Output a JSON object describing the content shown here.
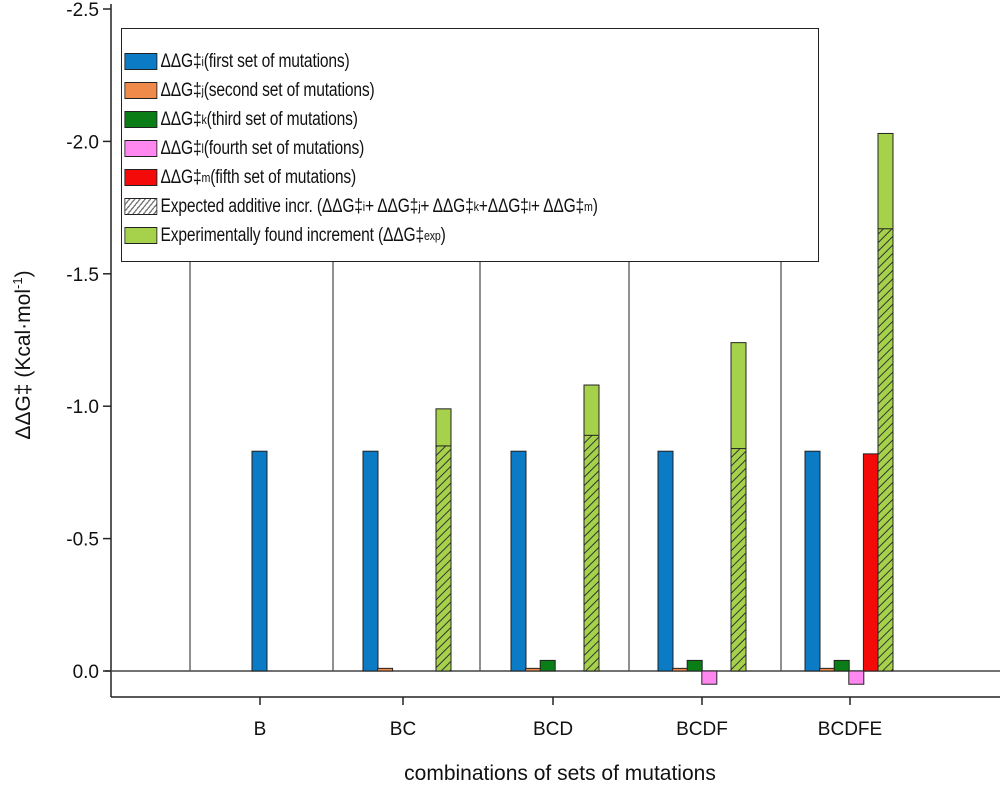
{
  "chart_data": {
    "type": "bar",
    "title": "",
    "xlabel": "combinations of sets of mutations",
    "ylabel": "ΔΔG‡ (Kcal·mol-1)",
    "ylabel_parts": {
      "main": "ΔΔG‡ (Kcal·mol",
      "sup": "-1",
      "end": ")"
    },
    "ylim": [
      0.1,
      -2.5
    ],
    "y_inverted": true,
    "yticks": [
      "-2.5",
      "-2.0",
      "-1.5",
      "-1.0",
      "-0.5",
      "0.0"
    ],
    "ytick_values": [
      -2.5,
      -2.0,
      -1.5,
      -1.0,
      -0.5,
      0.0
    ],
    "categories": [
      "B",
      "BC",
      "BCD",
      "BCDF",
      "BCDFE"
    ],
    "legend_position": "top-left",
    "grid": false,
    "series": [
      {
        "name": "ΔΔG‡i (first set of mutations)",
        "color": "#0a7bc4",
        "values": [
          -0.83,
          -0.83,
          -0.83,
          -0.83,
          -0.83
        ],
        "legend": [
          {
            "t": "ΔΔG‡"
          },
          {
            "s": "i"
          },
          {
            "t": " (first set of mutations)"
          }
        ]
      },
      {
        "name": "ΔΔG‡j (second set of mutations)",
        "color": "#f08a4b",
        "values": [
          null,
          -0.01,
          -0.01,
          -0.01,
          -0.01
        ],
        "legend": [
          {
            "t": "ΔΔG‡"
          },
          {
            "s": "j"
          },
          {
            "t": " (second set of mutations)"
          }
        ]
      },
      {
        "name": "ΔΔG‡k (third set of mutations)",
        "color": "#0a7d16",
        "values": [
          null,
          null,
          -0.04,
          -0.04,
          -0.04
        ],
        "legend": [
          {
            "t": "ΔΔG‡"
          },
          {
            "s": "k"
          },
          {
            "t": " (third set of mutations)"
          }
        ]
      },
      {
        "name": "ΔΔG‡l (fourth set of mutations)",
        "color": "#ff88f0",
        "values": [
          null,
          null,
          null,
          0.05,
          0.05
        ],
        "legend": [
          {
            "t": "ΔΔG‡"
          },
          {
            "s": "l"
          },
          {
            "t": " (fourth set of mutations)"
          }
        ]
      },
      {
        "name": "ΔΔG‡m (fifth set of mutations)",
        "color": "#f50a0a",
        "values": [
          null,
          null,
          null,
          null,
          -0.82
        ],
        "legend": [
          {
            "t": "ΔΔG‡"
          },
          {
            "s": "m"
          },
          {
            "t": " (fifth set of mutations)"
          }
        ]
      },
      {
        "name": "Expected additive incr. (ΔΔG‡i + ΔΔG‡j + ΔΔG‡k +ΔΔG‡l + ΔΔG‡m)",
        "color": "hatched",
        "values": [
          null,
          -0.85,
          -0.89,
          -0.84,
          -1.67
        ],
        "legend": [
          {
            "t": "Expected additive incr. (ΔΔG‡"
          },
          {
            "s": "i"
          },
          {
            "t": " + ΔΔG‡"
          },
          {
            "s": "j"
          },
          {
            "t": " + ΔΔG‡"
          },
          {
            "s": "k"
          },
          {
            "t": " +ΔΔG‡"
          },
          {
            "s": "l"
          },
          {
            "t": " + ΔΔG‡"
          },
          {
            "s": "m"
          },
          {
            "t": ")"
          }
        ]
      },
      {
        "name": "Experimentally found increment (ΔΔG‡exp)",
        "color": "#a5d24a",
        "values": [
          null,
          -0.99,
          -1.08,
          -1.24,
          -2.03
        ],
        "legend": [
          {
            "t": "Experimentally found increment (ΔΔG‡"
          },
          {
            "s": "exp"
          },
          {
            "t": ")"
          }
        ]
      }
    ]
  }
}
